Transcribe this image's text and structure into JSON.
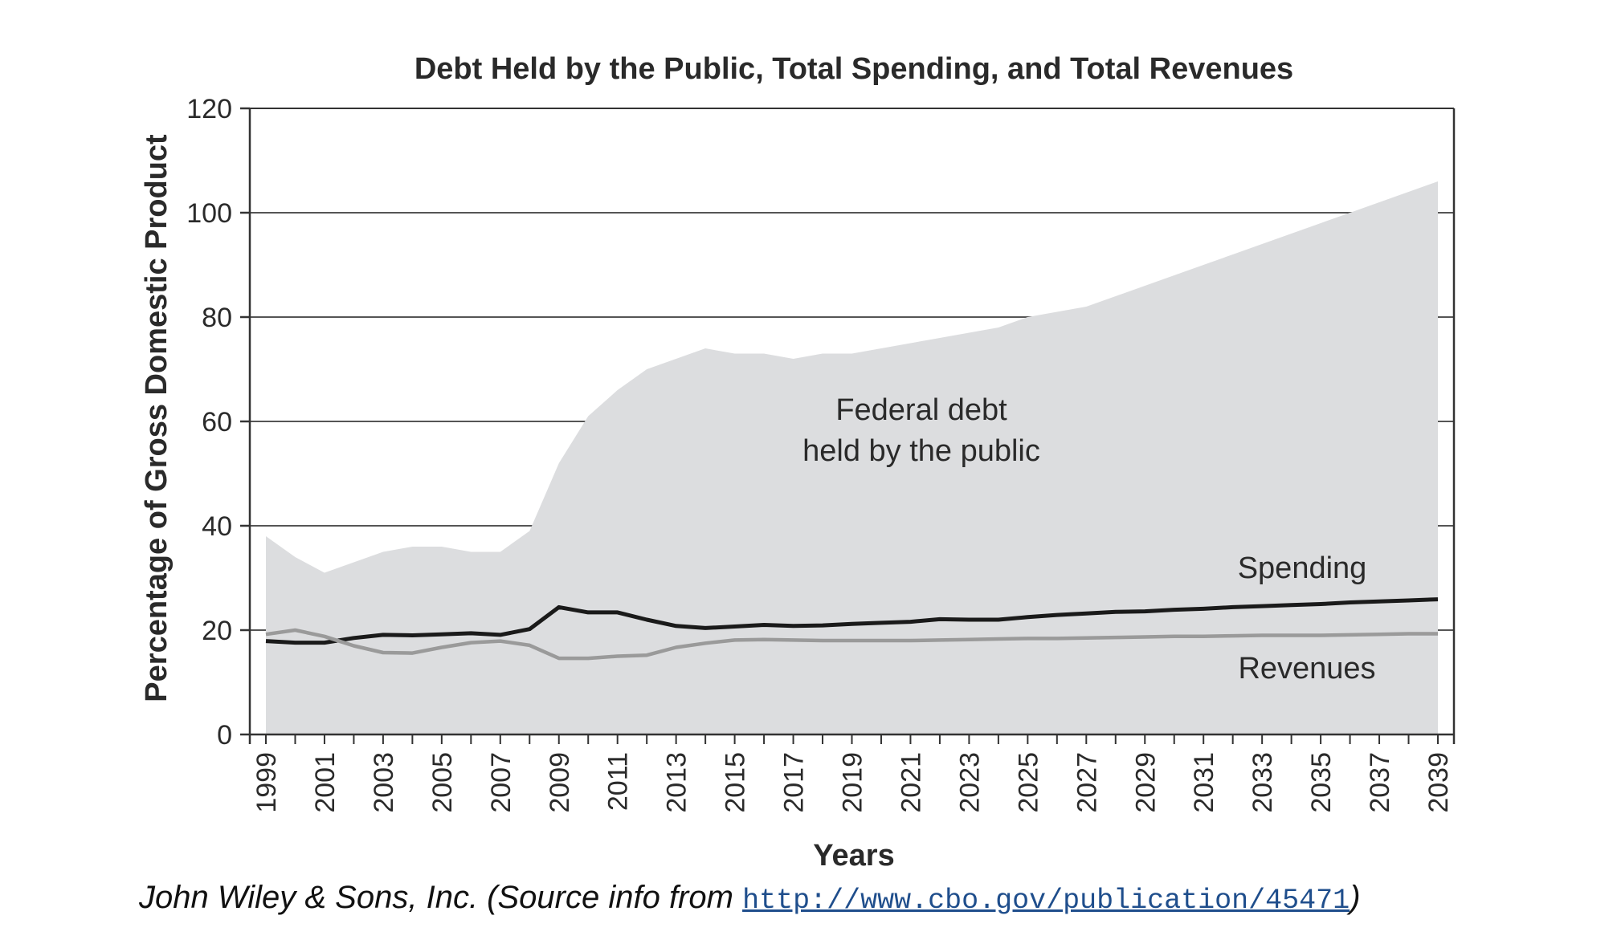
{
  "chart_data": {
    "type": "area",
    "title": "Debt Held by the Public, Total Spending, and Total Revenues",
    "xlabel": "Years",
    "ylabel": "Percentage of Gross Domestic Product",
    "xlim": [
      1999,
      2039
    ],
    "ylim": [
      0,
      120
    ],
    "x_ticks": [
      1999,
      2001,
      2003,
      2005,
      2007,
      2009,
      2011,
      2013,
      2015,
      2017,
      2019,
      2021,
      2023,
      2025,
      2027,
      2029,
      2031,
      2033,
      2035,
      2037,
      2039
    ],
    "y_ticks": [
      0,
      20,
      40,
      60,
      80,
      100,
      120
    ],
    "grid": "horizontal",
    "colors": {
      "debt": "#dcdddf",
      "spending": "#1a1a1a",
      "revenues": "#9a9a9a",
      "grid": "#555555",
      "axis": "#333333"
    },
    "series": [
      {
        "name": "Federal debt held by the public",
        "kind": "area",
        "x": [
          1999,
          2000,
          2001,
          2002,
          2003,
          2004,
          2005,
          2006,
          2007,
          2008,
          2009,
          2010,
          2011,
          2012,
          2013,
          2014,
          2015,
          2016,
          2017,
          2018,
          2019,
          2020,
          2021,
          2022,
          2023,
          2024,
          2025,
          2026,
          2027,
          2028,
          2029,
          2030,
          2031,
          2032,
          2033,
          2034,
          2035,
          2036,
          2037,
          2038,
          2039
        ],
        "values": [
          38,
          34,
          31,
          33,
          35,
          36,
          36,
          35,
          35,
          39,
          52,
          61,
          66,
          70,
          72,
          74,
          73,
          73,
          72,
          73,
          73,
          74,
          75,
          76,
          77,
          78,
          80,
          81,
          82,
          84,
          86,
          88,
          90,
          92,
          94,
          96,
          98,
          100,
          102,
          104,
          106
        ]
      },
      {
        "name": "Spending",
        "kind": "line",
        "x": [
          1999,
          2000,
          2001,
          2002,
          2003,
          2004,
          2005,
          2006,
          2007,
          2008,
          2009,
          2010,
          2011,
          2012,
          2013,
          2014,
          2015,
          2016,
          2017,
          2018,
          2019,
          2020,
          2021,
          2022,
          2023,
          2024,
          2025,
          2026,
          2027,
          2028,
          2029,
          2030,
          2031,
          2032,
          2033,
          2034,
          2035,
          2036,
          2037,
          2038,
          2039
        ],
        "values": [
          17.9,
          17.6,
          17.6,
          18.5,
          19.1,
          19.0,
          19.2,
          19.4,
          19.1,
          20.2,
          24.4,
          23.4,
          23.4,
          22.0,
          20.8,
          20.4,
          20.7,
          21.0,
          20.8,
          20.9,
          21.2,
          21.4,
          21.6,
          22.1,
          22.0,
          22.0,
          22.5,
          22.9,
          23.2,
          23.5,
          23.6,
          23.9,
          24.1,
          24.4,
          24.6,
          24.8,
          25.0,
          25.3,
          25.5,
          25.7,
          25.9
        ]
      },
      {
        "name": "Revenues",
        "kind": "line",
        "x": [
          1999,
          2000,
          2001,
          2002,
          2003,
          2004,
          2005,
          2006,
          2007,
          2008,
          2009,
          2010,
          2011,
          2012,
          2013,
          2014,
          2015,
          2016,
          2017,
          2018,
          2019,
          2020,
          2021,
          2022,
          2023,
          2024,
          2025,
          2026,
          2027,
          2028,
          2029,
          2030,
          2031,
          2032,
          2033,
          2034,
          2035,
          2036,
          2037,
          2038,
          2039
        ],
        "values": [
          19.2,
          20.0,
          18.8,
          17.0,
          15.7,
          15.6,
          16.7,
          17.6,
          17.9,
          17.1,
          14.6,
          14.6,
          15.0,
          15.2,
          16.7,
          17.5,
          18.1,
          18.2,
          18.1,
          18.0,
          18.0,
          18.0,
          18.0,
          18.1,
          18.2,
          18.3,
          18.4,
          18.4,
          18.5,
          18.6,
          18.7,
          18.8,
          18.8,
          18.9,
          19.0,
          19.0,
          19.0,
          19.1,
          19.2,
          19.3,
          19.3
        ]
      }
    ],
    "annotations": [
      {
        "text": "Federal debt",
        "series": "Federal debt held by the public"
      },
      {
        "text": "held by the public",
        "series": "Federal debt held by the public"
      },
      {
        "text": "Spending",
        "series": "Spending"
      },
      {
        "text": "Revenues",
        "series": "Revenues"
      }
    ]
  },
  "credit": {
    "text_prefix": "John Wiley & Sons, Inc. (Source info from ",
    "link": "http://www.cbo.gov/publication/45471",
    "text_suffix": ")"
  }
}
